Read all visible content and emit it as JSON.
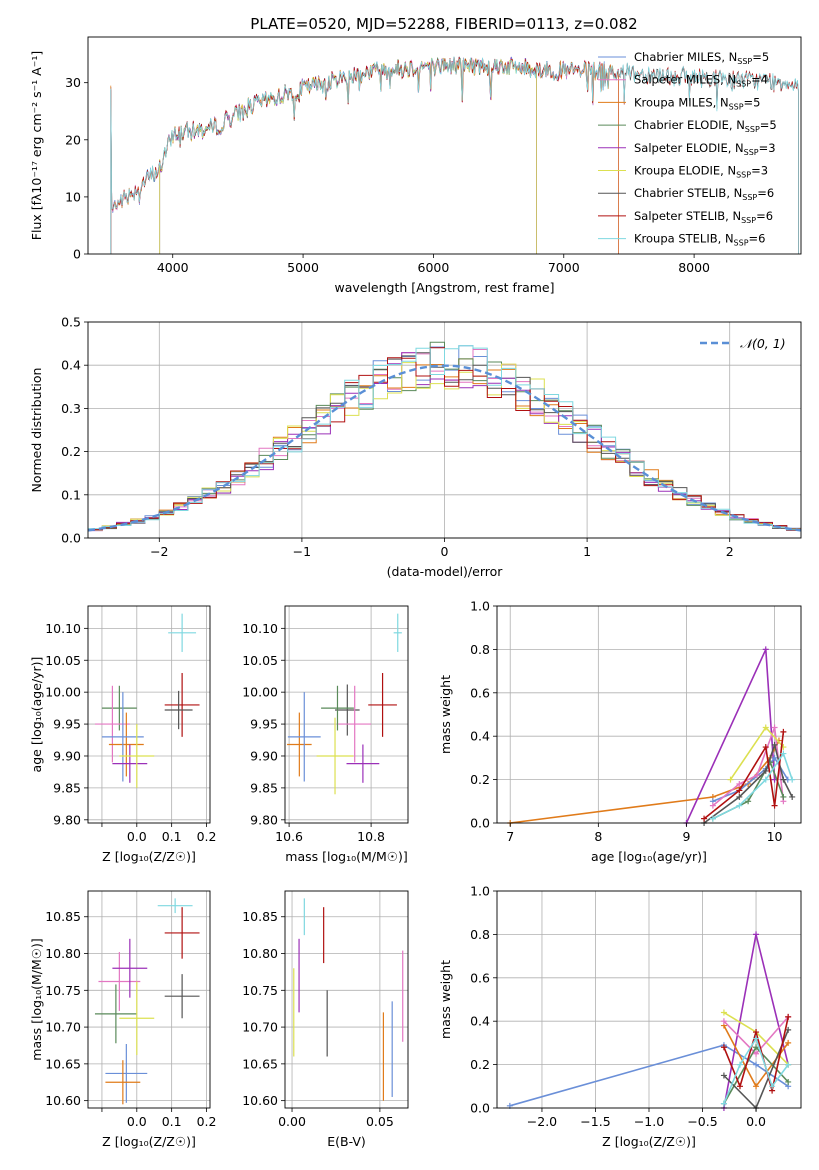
{
  "title": "PLATE=0520, MJD=52288, FIBERID=0113, z=0.082",
  "colors": {
    "Chabrier MILES": "#6a8fd8",
    "Salpeter MILES": "#e377c2",
    "Kroupa MILES": "#e07b1a",
    "Chabrier ELODIE": "#5a8a5a",
    "Salpeter ELODIE": "#9b30b8",
    "Kroupa ELODIE": "#dce050",
    "Chabrier STELIB": "#555555",
    "Salpeter STELIB": "#b01010",
    "Kroupa STELIB": "#7fd8e0",
    "gauss": "#5a8fd6"
  },
  "chart_data": [
    {
      "id": "spectrum",
      "type": "line",
      "title": "PLATE=0520, MJD=52288, FIBERID=0113, z=0.082",
      "xlabel": "wavelength [Angstrom, rest frame]",
      "ylabel": "Flux [fλ10⁻¹⁷ erg cm⁻² s⁻¹ A⁻¹]",
      "xlim": [
        3350,
        8820
      ],
      "ylim": [
        0,
        38
      ],
      "xticks": [
        4000,
        5000,
        6000,
        7000,
        8000
      ],
      "yticks": [
        0,
        10,
        20,
        30
      ],
      "legend": [
        "Chabrier MILES, N_SSP=5",
        "Salpeter MILES, N_SSP=4",
        "Kroupa MILES, N_SSP=5",
        "Chabrier ELODIE, N_SSP=5",
        "Salpeter ELODIE, N_SSP=3",
        "Kroupa ELODIE, N_SSP=3",
        "Chabrier STELIB, N_SSP=6",
        "Salpeter STELIB, N_SSP=6",
        "Kroupa STELIB, N_SSP=6"
      ],
      "legend_position": "top-right",
      "continuum": [
        [
          3530,
          8
        ],
        [
          3700,
          11
        ],
        [
          3900,
          15
        ],
        [
          4000,
          21
        ],
        [
          4300,
          22
        ],
        [
          4600,
          26
        ],
        [
          5000,
          29
        ],
        [
          5500,
          32
        ],
        [
          6000,
          33
        ],
        [
          6500,
          33
        ],
        [
          7000,
          32
        ],
        [
          7400,
          32
        ],
        [
          8000,
          31
        ],
        [
          8800,
          30
        ]
      ],
      "model_ranges": {
        "MILES": [
          3525,
          7420
        ],
        "ELODIE": [
          3900,
          6790
        ],
        "STELIB": [
          3525,
          8800
        ]
      }
    },
    {
      "id": "residuals",
      "type": "step",
      "xlabel": "(data-model)/error",
      "ylabel": "Normed distribution",
      "xlim": [
        -2.5,
        2.5
      ],
      "ylim": [
        0,
        0.5
      ],
      "xticks": [
        -2,
        -1,
        0,
        1,
        2
      ],
      "yticks": [
        0,
        0.1,
        0.2,
        0.3,
        0.4,
        0.5
      ],
      "grid": true,
      "legend": [
        "𝒩(0, 1)"
      ],
      "legend_position": "top-right"
    },
    {
      "id": "age_vs_Z",
      "type": "errorbar",
      "xlabel": "Z [log₁₀(Z/Z☉)]",
      "ylabel": "age  [log₁₀(age/yr)]",
      "xlim": [
        -0.14,
        0.21
      ],
      "ylim": [
        9.795,
        10.135
      ],
      "xticks": [
        -0.1,
        0.0,
        0.1,
        0.2
      ],
      "xticklabels": [
        "",
        "0.0",
        "0.1",
        "0.2"
      ],
      "yticks": [
        9.8,
        9.85,
        9.9,
        9.95,
        10.0,
        10.05,
        10.1
      ],
      "grid": true,
      "points": [
        {
          "model": "Kroupa STELIB",
          "x": 0.13,
          "xerr": 0.04,
          "y": 10.093,
          "yerr": 0.03
        },
        {
          "model": "Salpeter STELIB",
          "x": 0.13,
          "xerr": 0.05,
          "y": 9.98,
          "yerr": 0.05
        },
        {
          "model": "Chabrier STELIB",
          "x": 0.12,
          "xerr": 0.04,
          "y": 9.972,
          "yerr": 0.03
        },
        {
          "model": "Chabrier ELODIE",
          "x": -0.05,
          "xerr": 0.05,
          "y": 9.975,
          "yerr": 0.035
        },
        {
          "model": "Salpeter MILES",
          "x": -0.07,
          "xerr": 0.05,
          "y": 9.95,
          "yerr": 0.06
        },
        {
          "model": "Kroupa MILES",
          "x": -0.03,
          "xerr": 0.05,
          "y": 9.918,
          "yerr": 0.05
        },
        {
          "model": "Chabrier MILES",
          "x": -0.04,
          "xerr": 0.06,
          "y": 9.93,
          "yerr": 0.07
        },
        {
          "model": "Salpeter ELODIE",
          "x": -0.02,
          "xerr": 0.05,
          "y": 9.888,
          "yerr": 0.03
        },
        {
          "model": "Kroupa ELODIE",
          "x": 0.0,
          "xerr": 0.05,
          "y": 9.9,
          "yerr": 0.05
        }
      ]
    },
    {
      "id": "age_vs_mass",
      "type": "errorbar",
      "xlabel": "mass [log₁₀(M/M☉)]",
      "ylabel": "",
      "xlim": [
        10.59,
        10.89
      ],
      "ylim": [
        9.795,
        10.135
      ],
      "xticks": [
        10.6,
        10.8
      ],
      "yticks": [
        9.8,
        9.85,
        9.9,
        9.95,
        10.0,
        10.05,
        10.1
      ],
      "grid": true,
      "points": [
        {
          "model": "Kroupa STELIB",
          "x": 10.865,
          "xerr": 0.01,
          "y": 10.093,
          "yerr": 0.03
        },
        {
          "model": "Salpeter STELIB",
          "x": 10.828,
          "xerr": 0.035,
          "y": 9.98,
          "yerr": 0.05
        },
        {
          "model": "Chabrier STELIB",
          "x": 10.742,
          "xerr": 0.03,
          "y": 9.972,
          "yerr": 0.04
        },
        {
          "model": "Chabrier ELODIE",
          "x": 10.718,
          "xerr": 0.04,
          "y": 9.975,
          "yerr": 0.035
        },
        {
          "model": "Salpeter MILES",
          "x": 10.76,
          "xerr": 0.04,
          "y": 9.95,
          "yerr": 0.06
        },
        {
          "model": "Kroupa MILES",
          "x": 10.625,
          "xerr": 0.03,
          "y": 9.918,
          "yerr": 0.05
        },
        {
          "model": "Chabrier MILES",
          "x": 10.637,
          "xerr": 0.04,
          "y": 9.93,
          "yerr": 0.07
        },
        {
          "model": "Salpeter ELODIE",
          "x": 10.78,
          "xerr": 0.04,
          "y": 9.888,
          "yerr": 0.03
        },
        {
          "model": "Kroupa ELODIE",
          "x": 10.712,
          "xerr": 0.045,
          "y": 9.9,
          "yerr": 0.06
        }
      ]
    },
    {
      "id": "weight_vs_age",
      "type": "line",
      "xlabel": "age  [log₁₀(age/yr)]",
      "ylabel": "mass weight",
      "xlim": [
        6.85,
        10.3
      ],
      "ylim": [
        0,
        1.0
      ],
      "xticks": [
        7,
        8,
        9,
        10
      ],
      "yticks": [
        0,
        0.2,
        0.4,
        0.6,
        0.8,
        1.0
      ],
      "grid": true,
      "series": [
        {
          "model": "Kroupa MILES",
          "x": [
            7.0,
            9.3,
            9.7,
            9.95,
            10.05
          ],
          "y": [
            0.0,
            0.12,
            0.18,
            0.3,
            0.38
          ]
        },
        {
          "model": "Salpeter ELODIE",
          "x": [
            9.0,
            9.9,
            10.0
          ],
          "y": [
            0.0,
            0.8,
            0.2
          ]
        },
        {
          "model": "Chabrier MILES",
          "x": [
            9.3,
            9.6,
            9.9,
            10.0,
            10.15
          ],
          "y": [
            0.1,
            0.15,
            0.25,
            0.3,
            0.2
          ]
        },
        {
          "model": "Salpeter MILES",
          "x": [
            9.3,
            9.6,
            9.8,
            10.0,
            10.1
          ],
          "y": [
            0.08,
            0.18,
            0.22,
            0.44,
            0.1
          ]
        },
        {
          "model": "Kroupa ELODIE",
          "x": [
            9.5,
            9.9,
            10.1
          ],
          "y": [
            0.2,
            0.44,
            0.35
          ]
        },
        {
          "model": "Chabrier ELODIE",
          "x": [
            9.3,
            9.7,
            9.95,
            10.1
          ],
          "y": [
            0.02,
            0.1,
            0.28,
            0.12
          ]
        },
        {
          "model": "Chabrier STELIB",
          "x": [
            9.2,
            9.6,
            9.9,
            10.0,
            10.1,
            10.2
          ],
          "y": [
            0.0,
            0.12,
            0.24,
            0.36,
            0.2,
            0.12
          ]
        },
        {
          "model": "Salpeter STELIB",
          "x": [
            9.2,
            9.6,
            9.9,
            10.0,
            10.1
          ],
          "y": [
            0.02,
            0.15,
            0.35,
            0.08,
            0.42
          ]
        },
        {
          "model": "Kroupa STELIB",
          "x": [
            9.3,
            9.6,
            9.9,
            10.1,
            10.2
          ],
          "y": [
            0.02,
            0.08,
            0.2,
            0.32,
            0.2
          ]
        }
      ]
    },
    {
      "id": "mass_vs_Z",
      "type": "errorbar",
      "xlabel": "Z [log₁₀(Z/Z☉)]",
      "ylabel": "mass [log₁₀(M/M☉)]",
      "xlim": [
        -0.14,
        0.21
      ],
      "ylim": [
        10.59,
        10.885
      ],
      "xticks": [
        -0.1,
        0.0,
        0.1,
        0.2
      ],
      "xticklabels": [
        "",
        "0.0",
        "0.1",
        "0.2"
      ],
      "yticks": [
        10.6,
        10.65,
        10.7,
        10.75,
        10.8,
        10.85
      ],
      "grid": true,
      "points": [
        {
          "model": "Kroupa STELIB",
          "x": 0.11,
          "xerr": 0.05,
          "y": 10.865,
          "yerr": 0.01
        },
        {
          "model": "Salpeter STELIB",
          "x": 0.13,
          "xerr": 0.05,
          "y": 10.828,
          "yerr": 0.035
        },
        {
          "model": "Chabrier STELIB",
          "x": 0.13,
          "xerr": 0.05,
          "y": 10.742,
          "yerr": 0.03
        },
        {
          "model": "Salpeter MILES",
          "x": -0.05,
          "xerr": 0.06,
          "y": 10.762,
          "yerr": 0.04
        },
        {
          "model": "Salpeter ELODIE",
          "x": -0.02,
          "xerr": 0.05,
          "y": 10.78,
          "yerr": 0.04
        },
        {
          "model": "Chabrier ELODIE",
          "x": -0.06,
          "xerr": 0.06,
          "y": 10.718,
          "yerr": 0.04
        },
        {
          "model": "Kroupa ELODIE",
          "x": 0.0,
          "xerr": 0.05,
          "y": 10.712,
          "yerr": 0.05
        },
        {
          "model": "Chabrier MILES",
          "x": -0.03,
          "xerr": 0.06,
          "y": 10.637,
          "yerr": 0.04
        },
        {
          "model": "Kroupa MILES",
          "x": -0.04,
          "xerr": 0.05,
          "y": 10.625,
          "yerr": 0.03
        }
      ]
    },
    {
      "id": "mass_vs_ebv",
      "type": "errorbar",
      "xlabel": "E(B-V)",
      "ylabel": "",
      "xlim": [
        -0.004,
        0.066
      ],
      "ylim": [
        10.59,
        10.885
      ],
      "xticks": [
        0.0,
        0.05
      ],
      "yticks": [
        10.6,
        10.65,
        10.7,
        10.75,
        10.8,
        10.85
      ],
      "grid": true,
      "points": [
        {
          "model": "Kroupa STELIB",
          "x": 0.007,
          "xerr": 0,
          "y": 10.85,
          "yerr": 0.025
        },
        {
          "model": "Salpeter STELIB",
          "x": 0.018,
          "xerr": 0,
          "y": 10.825,
          "yerr": 0.038
        },
        {
          "model": "Salpeter ELODIE",
          "x": 0.004,
          "xerr": 0,
          "y": 10.77,
          "yerr": 0.05
        },
        {
          "model": "Chabrier STELIB",
          "x": 0.02,
          "xerr": 0,
          "y": 10.705,
          "yerr": 0.045
        },
        {
          "model": "Kroupa ELODIE",
          "x": 0.001,
          "xerr": 0,
          "y": 10.72,
          "yerr": 0.06
        },
        {
          "model": "Salpeter MILES",
          "x": 0.063,
          "xerr": 0,
          "y": 10.742,
          "yerr": 0.062
        },
        {
          "model": "Chabrier MILES",
          "x": 0.057,
          "xerr": 0,
          "y": 10.67,
          "yerr": 0.065
        },
        {
          "model": "Kroupa MILES",
          "x": 0.052,
          "xerr": 0,
          "y": 10.66,
          "yerr": 0.06
        }
      ]
    },
    {
      "id": "weight_vs_Z",
      "type": "line",
      "xlabel": "Z [log₁₀(Z/Z☉)]",
      "ylabel": "mass weight",
      "xlim": [
        -2.42,
        0.42
      ],
      "ylim": [
        0,
        1.0
      ],
      "xticks": [
        -2.0,
        -1.5,
        -1.0,
        -0.5,
        0.0
      ],
      "yticks": [
        0,
        0.2,
        0.4,
        0.6,
        0.8,
        1.0
      ],
      "grid": true,
      "series": [
        {
          "model": "Chabrier MILES",
          "x": [
            -2.3,
            -0.3,
            0.0,
            0.3
          ],
          "y": [
            0.01,
            0.29,
            0.2,
            0.1
          ]
        },
        {
          "model": "Salpeter ELODIE",
          "x": [
            -0.3,
            0.0,
            0.3
          ],
          "y": [
            0.0,
            0.8,
            0.2
          ]
        },
        {
          "model": "Kroupa ELODIE",
          "x": [
            -0.3,
            0.0,
            0.3
          ],
          "y": [
            0.44,
            0.35,
            0.2
          ]
        },
        {
          "model": "Kroupa MILES",
          "x": [
            -0.3,
            0.0,
            0.3
          ],
          "y": [
            0.38,
            0.1,
            0.3
          ]
        },
        {
          "model": "Salpeter MILES",
          "x": [
            -0.3,
            0.0,
            0.3
          ],
          "y": [
            0.4,
            0.25,
            0.42
          ]
        },
        {
          "model": "Chabrier ELODIE",
          "x": [
            -0.3,
            0.0,
            0.3
          ],
          "y": [
            0.02,
            0.28,
            0.12
          ]
        },
        {
          "model": "Chabrier STELIB",
          "x": [
            -0.3,
            0.0,
            0.3
          ],
          "y": [
            0.15,
            0.0,
            0.36
          ]
        },
        {
          "model": "Salpeter STELIB",
          "x": [
            -0.3,
            -0.15,
            0.0,
            0.15,
            0.3
          ],
          "y": [
            0.28,
            0.1,
            0.35,
            0.08,
            0.42
          ]
        },
        {
          "model": "Kroupa STELIB",
          "x": [
            -0.3,
            -0.15,
            0.0,
            0.15,
            0.3
          ],
          "y": [
            0.02,
            0.2,
            0.32,
            0.1,
            0.2
          ]
        }
      ]
    }
  ]
}
